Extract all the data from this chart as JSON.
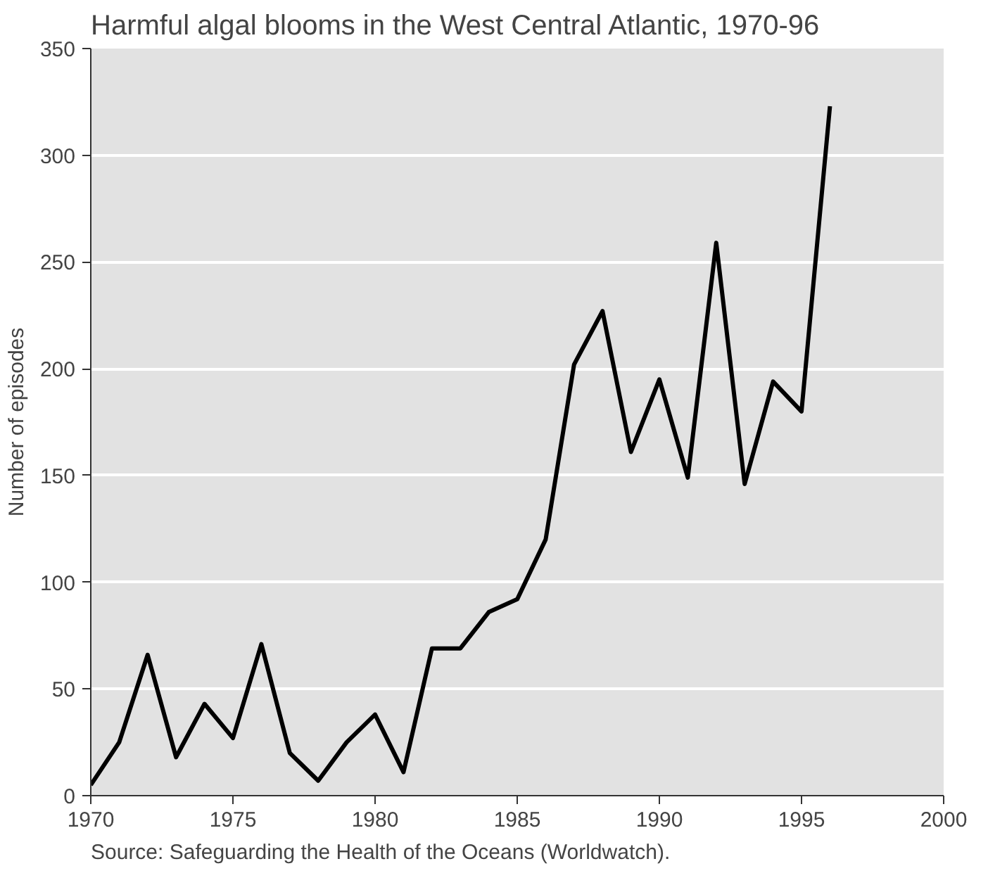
{
  "chart_data": {
    "type": "line",
    "title": "Harmful algal blooms in the West Central Atlantic, 1970-96",
    "ylabel": "Number of episodes",
    "x": [
      1970,
      1971,
      1972,
      1973,
      1974,
      1975,
      1976,
      1977,
      1978,
      1979,
      1980,
      1981,
      1982,
      1983,
      1984,
      1985,
      1986,
      1987,
      1988,
      1989,
      1990,
      1991,
      1992,
      1993,
      1994,
      1995,
      1996
    ],
    "series": [
      {
        "color": "#000000",
        "values": [
          5,
          25,
          66,
          18,
          43,
          27,
          71,
          20,
          7,
          25,
          38,
          11,
          69,
          69,
          86,
          92,
          120,
          202,
          227,
          161,
          195,
          149,
          259,
          146,
          194,
          180,
          323
        ]
      }
    ],
    "xlim": [
      1970,
      2000
    ],
    "xticks": [
      1970,
      1975,
      1980,
      1985,
      1990,
      1995,
      2000
    ],
    "ylim": [
      0,
      350
    ],
    "yticks": [
      0,
      50,
      100,
      150,
      200,
      250,
      300,
      350
    ],
    "grid": "y",
    "marker": "none",
    "line_style": "solid",
    "annotations": [
      "Source: Safeguarding the Health of the Oceans (Worldwatch)."
    ]
  }
}
